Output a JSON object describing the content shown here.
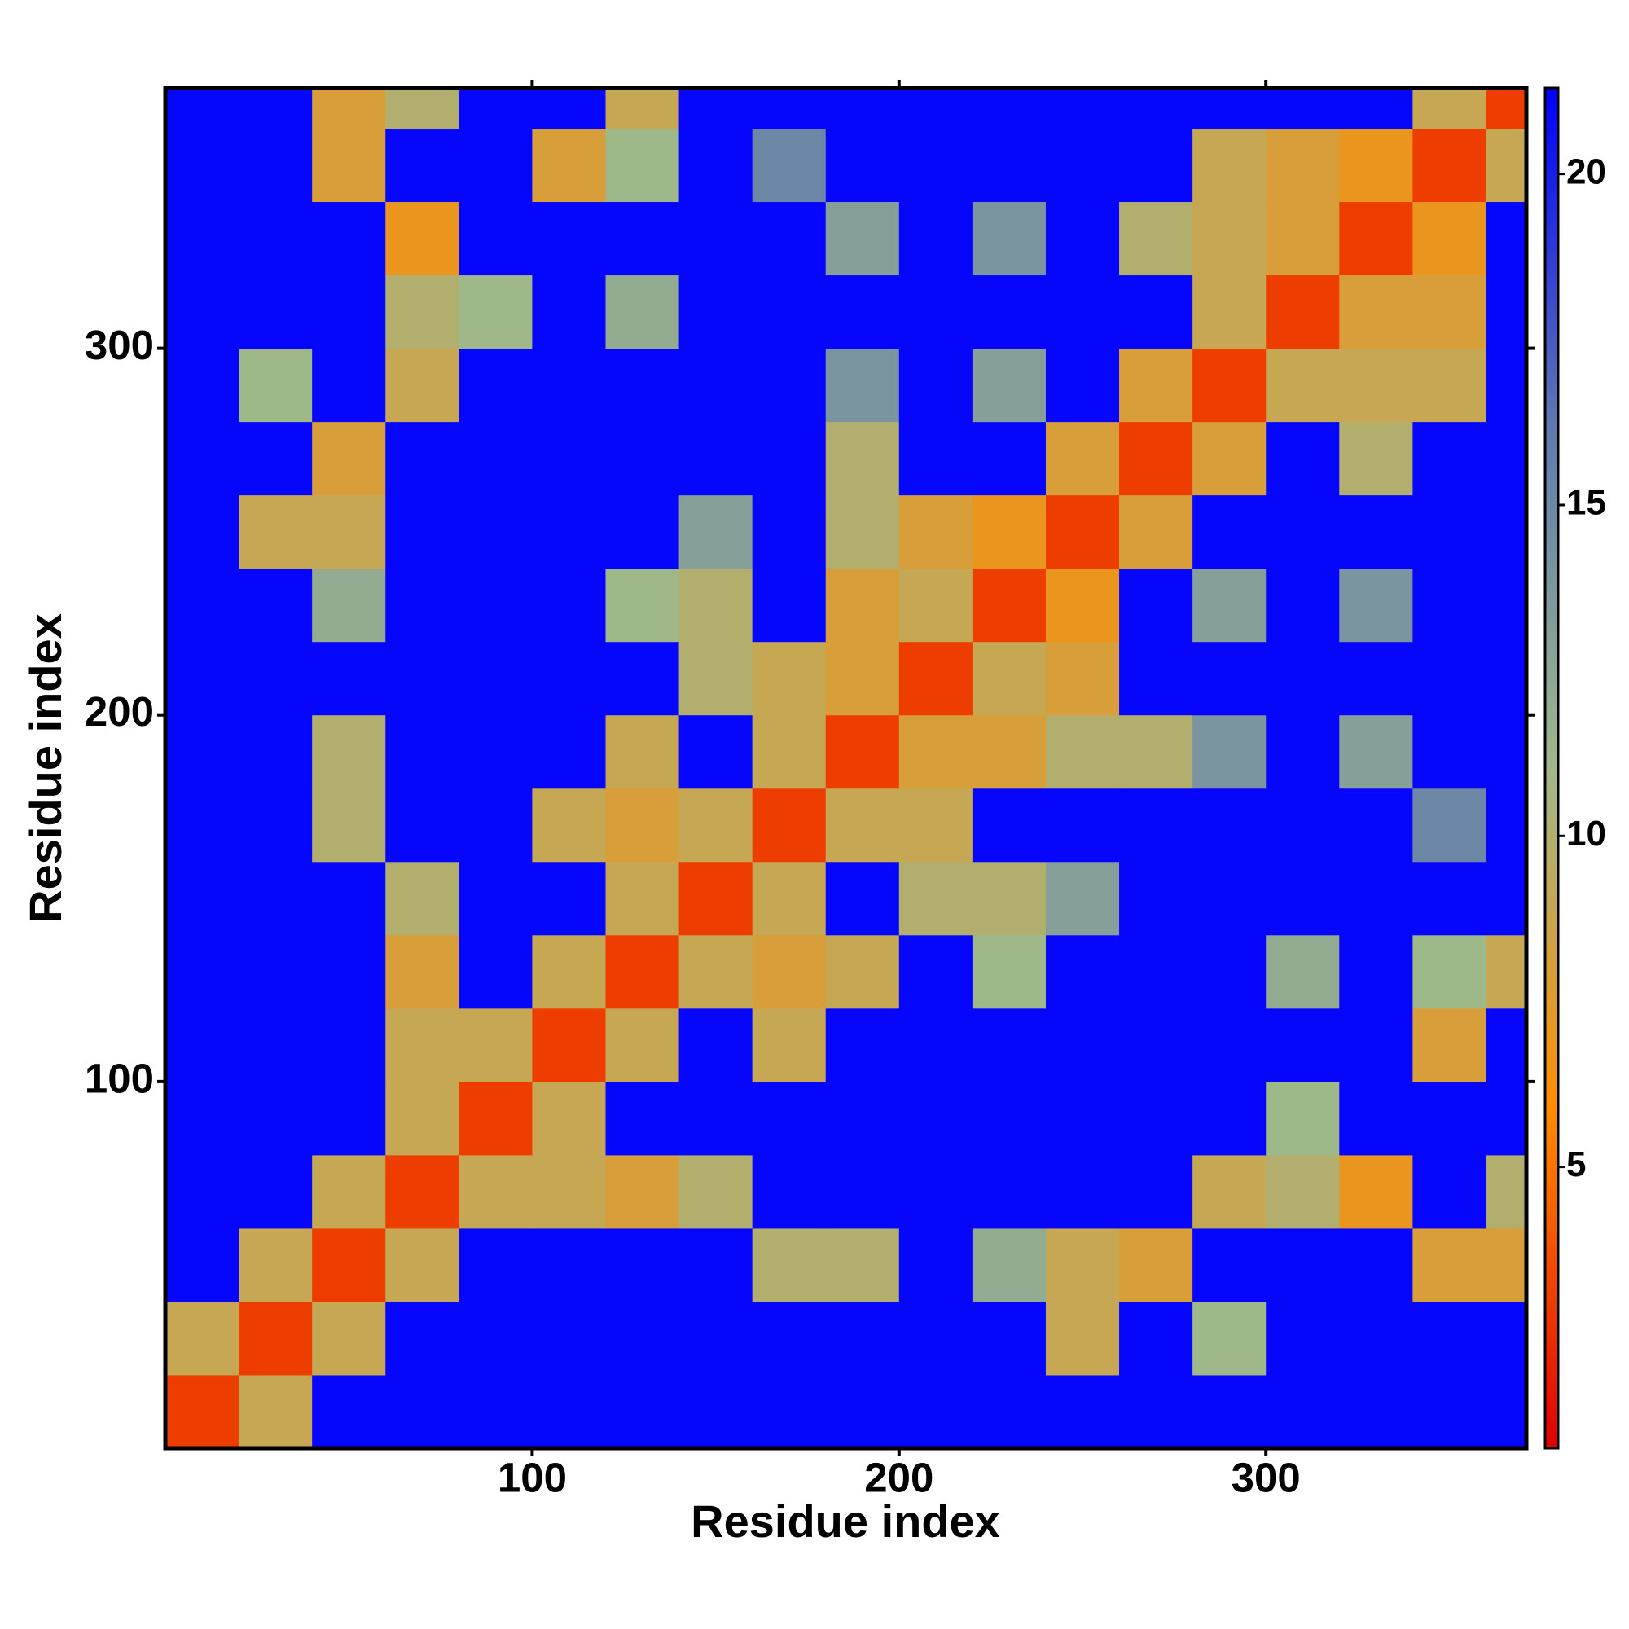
{
  "chart_data": {
    "type": "heatmap",
    "xlabel": "Residue index",
    "ylabel": "Residue index",
    "x_bins": [
      0,
      20,
      40,
      60,
      80,
      100,
      120,
      140,
      160,
      180,
      200,
      220,
      240,
      260,
      280,
      300,
      320,
      340,
      360,
      371
    ],
    "y_bins": [
      0,
      20,
      40,
      60,
      80,
      100,
      120,
      140,
      160,
      180,
      200,
      220,
      240,
      260,
      280,
      300,
      320,
      340,
      360,
      371
    ],
    "z": [
      [
        3,
        9,
        21,
        21,
        21,
        21,
        21,
        21,
        21,
        21,
        21,
        21,
        21,
        21,
        21,
        21,
        21,
        21,
        21
      ],
      [
        9,
        3,
        9,
        21,
        21,
        21,
        21,
        21,
        21,
        21,
        21,
        21,
        9,
        21,
        11,
        21,
        21,
        21,
        21
      ],
      [
        21,
        9,
        3,
        9,
        21,
        21,
        21,
        21,
        10,
        10,
        21,
        12,
        9,
        8,
        21,
        21,
        21,
        8,
        8
      ],
      [
        21,
        21,
        9,
        3,
        9,
        9,
        8,
        10,
        21,
        21,
        21,
        21,
        21,
        21,
        9,
        10,
        7,
        21,
        10
      ],
      [
        21,
        21,
        21,
        9,
        3,
        9,
        21,
        21,
        21,
        21,
        21,
        21,
        21,
        21,
        21,
        11,
        21,
        21,
        21
      ],
      [
        21,
        21,
        21,
        9,
        9,
        3,
        9,
        21,
        9,
        21,
        21,
        21,
        21,
        21,
        21,
        21,
        21,
        8,
        21
      ],
      [
        21,
        21,
        21,
        8,
        21,
        9,
        3,
        9,
        8,
        9,
        21,
        11,
        21,
        21,
        21,
        12,
        21,
        11,
        9
      ],
      [
        21,
        21,
        21,
        10,
        21,
        21,
        9,
        3,
        9,
        21,
        10,
        10,
        13,
        21,
        21,
        21,
        21,
        21,
        21
      ],
      [
        21,
        21,
        10,
        21,
        21,
        9,
        8,
        9,
        3,
        9,
        9,
        21,
        21,
        21,
        21,
        21,
        21,
        15,
        21
      ],
      [
        21,
        21,
        10,
        21,
        21,
        21,
        9,
        21,
        9,
        3,
        8,
        8,
        10,
        10,
        14,
        21,
        13,
        21,
        21
      ],
      [
        21,
        21,
        21,
        21,
        21,
        21,
        21,
        10,
        9,
        8,
        3,
        9,
        8,
        21,
        21,
        21,
        21,
        21,
        21
      ],
      [
        21,
        21,
        12,
        21,
        21,
        21,
        11,
        10,
        21,
        8,
        9,
        3,
        7,
        21,
        13,
        21,
        14,
        21,
        21
      ],
      [
        21,
        9,
        9,
        21,
        21,
        21,
        21,
        13,
        21,
        10,
        8,
        7,
        3,
        8,
        21,
        21,
        21,
        21,
        21
      ],
      [
        21,
        21,
        8,
        21,
        21,
        21,
        21,
        21,
        21,
        10,
        21,
        21,
        8,
        3,
        8,
        21,
        10,
        21,
        21
      ],
      [
        21,
        11,
        21,
        9,
        21,
        21,
        21,
        21,
        21,
        14,
        21,
        13,
        21,
        8,
        3,
        9,
        9,
        9,
        21
      ],
      [
        21,
        21,
        21,
        10,
        11,
        21,
        12,
        21,
        21,
        21,
        21,
        21,
        21,
        21,
        9,
        3,
        8,
        8,
        21
      ],
      [
        21,
        21,
        21,
        7,
        21,
        21,
        21,
        21,
        21,
        13,
        21,
        14,
        21,
        10,
        9,
        8,
        3,
        7,
        21
      ],
      [
        21,
        21,
        8,
        21,
        21,
        8,
        11,
        21,
        15,
        21,
        21,
        21,
        21,
        21,
        9,
        8,
        7,
        3,
        9
      ],
      [
        21,
        21,
        8,
        10,
        21,
        21,
        9,
        21,
        21,
        21,
        21,
        21,
        21,
        21,
        21,
        21,
        21,
        9,
        3
      ]
    ],
    "xlim": [
      0,
      371
    ],
    "ylim": [
      0,
      371
    ],
    "xticks": [
      100,
      200,
      300
    ],
    "yticks": [
      100,
      200,
      300
    ],
    "zlim": [
      0.75,
      21.3
    ],
    "zticks": [
      5,
      10,
      15,
      20
    ],
    "colorscale": [
      "#e00000",
      "#ff8c00",
      "#9fb88a",
      "#5f7ab0",
      "#0000ff"
    ]
  }
}
